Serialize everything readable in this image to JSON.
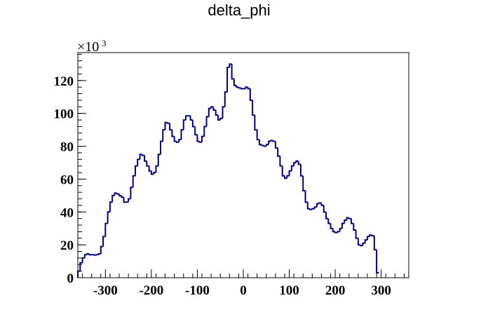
{
  "chart_data": {
    "type": "histogram",
    "title": "delta_phi",
    "xlabel": "",
    "ylabel": "",
    "y_multiplier": {
      "base": "×10",
      "exponent": "3"
    },
    "xlim": [
      -360,
      360
    ],
    "ylim": [
      0,
      137
    ],
    "x_ticks": [
      -300,
      -200,
      -100,
      0,
      100,
      200,
      300
    ],
    "x_tick_labels": [
      "-300",
      "-200",
      "-100",
      "0",
      "100",
      "200",
      "300"
    ],
    "y_ticks": [
      0,
      20,
      40,
      60,
      80,
      100,
      120
    ],
    "y_tick_labels": [
      "0",
      "20",
      "40",
      "60",
      "80",
      "100",
      "120"
    ],
    "grid": false,
    "line_color": "#000080",
    "bin_edges_start": -360,
    "bin_width": 5,
    "values": [
      4,
      9,
      12,
      14,
      14.5,
      14,
      14,
      13.8,
      14,
      14.5,
      19,
      25,
      33,
      40,
      46,
      50,
      51.5,
      51,
      50,
      49,
      46,
      46,
      48,
      55,
      62,
      68,
      72,
      75,
      74.5,
      71,
      68,
      65,
      63,
      64,
      68,
      75,
      83,
      90,
      94.5,
      94,
      90,
      86,
      83,
      82.5,
      84,
      90,
      96,
      98.5,
      98.5,
      96,
      92,
      87,
      83,
      82.5,
      86,
      92,
      98,
      103,
      104,
      102,
      99,
      96,
      97,
      104,
      113,
      128,
      130,
      121,
      117,
      116,
      115.5,
      115,
      115,
      116,
      115,
      108,
      99,
      90,
      84,
      81,
      80.5,
      80,
      81,
      83,
      83.5,
      83,
      79,
      74,
      68,
      62,
      60.5,
      62,
      65,
      68,
      70,
      71,
      69,
      62,
      53,
      46,
      42,
      41.5,
      42,
      43,
      45,
      45.5,
      44,
      40,
      36,
      33,
      30,
      28,
      27.5,
      28,
      30,
      33,
      35,
      36.5,
      36,
      33,
      29,
      24,
      20,
      19.5,
      21,
      23,
      25,
      26,
      25.5,
      17,
      3
    ]
  }
}
